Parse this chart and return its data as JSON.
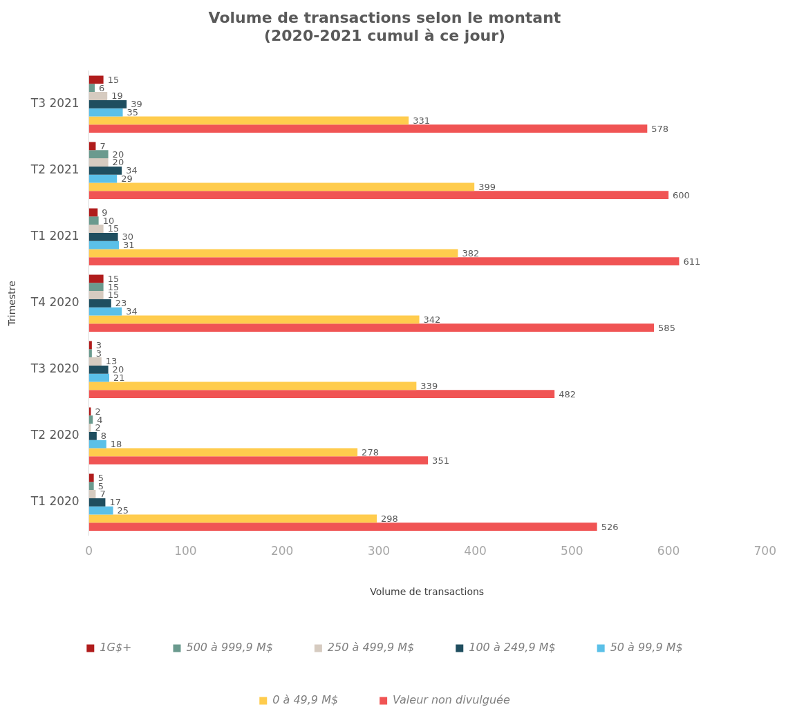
{
  "chart_data": {
    "type": "bar",
    "orientation": "horizontal",
    "title": "Volume de transactions selon le montant\n(2020-2021 cumul à ce jour)",
    "xlabel": "Volume de transactions",
    "ylabel": "Trimestre",
    "categories": [
      "T3 2021",
      "T2 2021",
      "T1 2021",
      "T4 2020",
      "T3 2020",
      "T2 2020",
      "T1 2020"
    ],
    "series": [
      {
        "name": "1G$+",
        "color": "#b01c1c",
        "values": [
          15,
          7,
          9,
          15,
          3,
          2,
          5
        ]
      },
      {
        "name": "500 à 999,9 M$",
        "color": "#6a9a8e",
        "values": [
          6,
          20,
          10,
          15,
          3,
          4,
          5
        ]
      },
      {
        "name": "250 à 499,9 M$",
        "color": "#d6cbc0",
        "values": [
          19,
          20,
          15,
          15,
          13,
          2,
          7
        ]
      },
      {
        "name": "100 à 249,9 M$",
        "color": "#1f4e5f",
        "values": [
          39,
          34,
          30,
          23,
          20,
          8,
          17
        ]
      },
      {
        "name": "50 à 99,9 M$",
        "color": "#5bc0e8",
        "values": [
          35,
          29,
          31,
          34,
          21,
          18,
          25
        ]
      },
      {
        "name": "0 à 49,9 M$",
        "color": "#ffcc4d",
        "values": [
          331,
          399,
          382,
          342,
          339,
          278,
          298
        ]
      },
      {
        "name": "Valeur non divulguée",
        "color": "#f05454",
        "values": [
          578,
          600,
          611,
          585,
          482,
          351,
          526
        ]
      }
    ],
    "xlim": [
      0,
      700
    ],
    "xticks": [
      0,
      100,
      200,
      300,
      400,
      500,
      600,
      700
    ],
    "grid": false,
    "legend": "bottom",
    "data_labels": true
  }
}
